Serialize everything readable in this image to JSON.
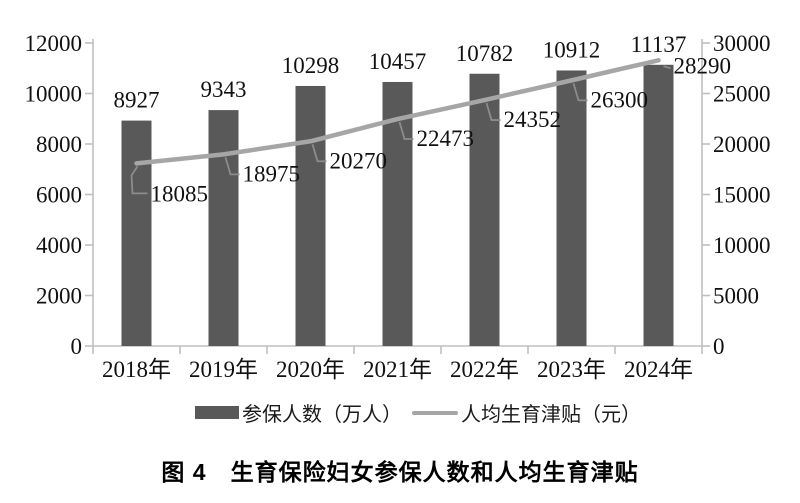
{
  "chart_data": {
    "type": "combo",
    "title": "图 4　生育保险妇女参保人数和人均生育津贴",
    "categories": [
      "2018年",
      "2019年",
      "2020年",
      "2021年",
      "2022年",
      "2023年",
      "2024年"
    ],
    "series": [
      {
        "name": "参保人数（万人）",
        "type": "bar",
        "axis": "left",
        "color": "#595959",
        "values": [
          8927,
          9343,
          10298,
          10457,
          10782,
          10912,
          11137
        ]
      },
      {
        "name": "人均生育津贴（元）",
        "type": "line",
        "axis": "right",
        "color": "#a6a6a6",
        "values": [
          18085,
          18975,
          20270,
          22473,
          24352,
          26300,
          28290
        ]
      }
    ],
    "left_axis": {
      "min": 0,
      "max": 12000,
      "ticks": [
        0,
        2000,
        4000,
        6000,
        8000,
        10000,
        12000
      ]
    },
    "right_axis": {
      "min": 0,
      "max": 30000,
      "ticks": [
        0,
        5000,
        10000,
        15000,
        20000,
        25000,
        30000
      ]
    },
    "grid": false,
    "data_labels": true,
    "legend_position": "bottom"
  },
  "legend": {
    "items": [
      {
        "label": "参保人数（万人）",
        "swatch": "bar",
        "color": "#595959"
      },
      {
        "label": "人均生育津贴（元）",
        "swatch": "line",
        "color": "#a6a6a6"
      }
    ]
  },
  "caption": {
    "text": "图 4　生育保险妇女参保人数和人均生育津贴"
  },
  "colors": {
    "bar": "#595959",
    "line": "#a6a6a6",
    "callout": "#8c8c8c",
    "axis": "#bfbfbf",
    "text": "#111111"
  }
}
